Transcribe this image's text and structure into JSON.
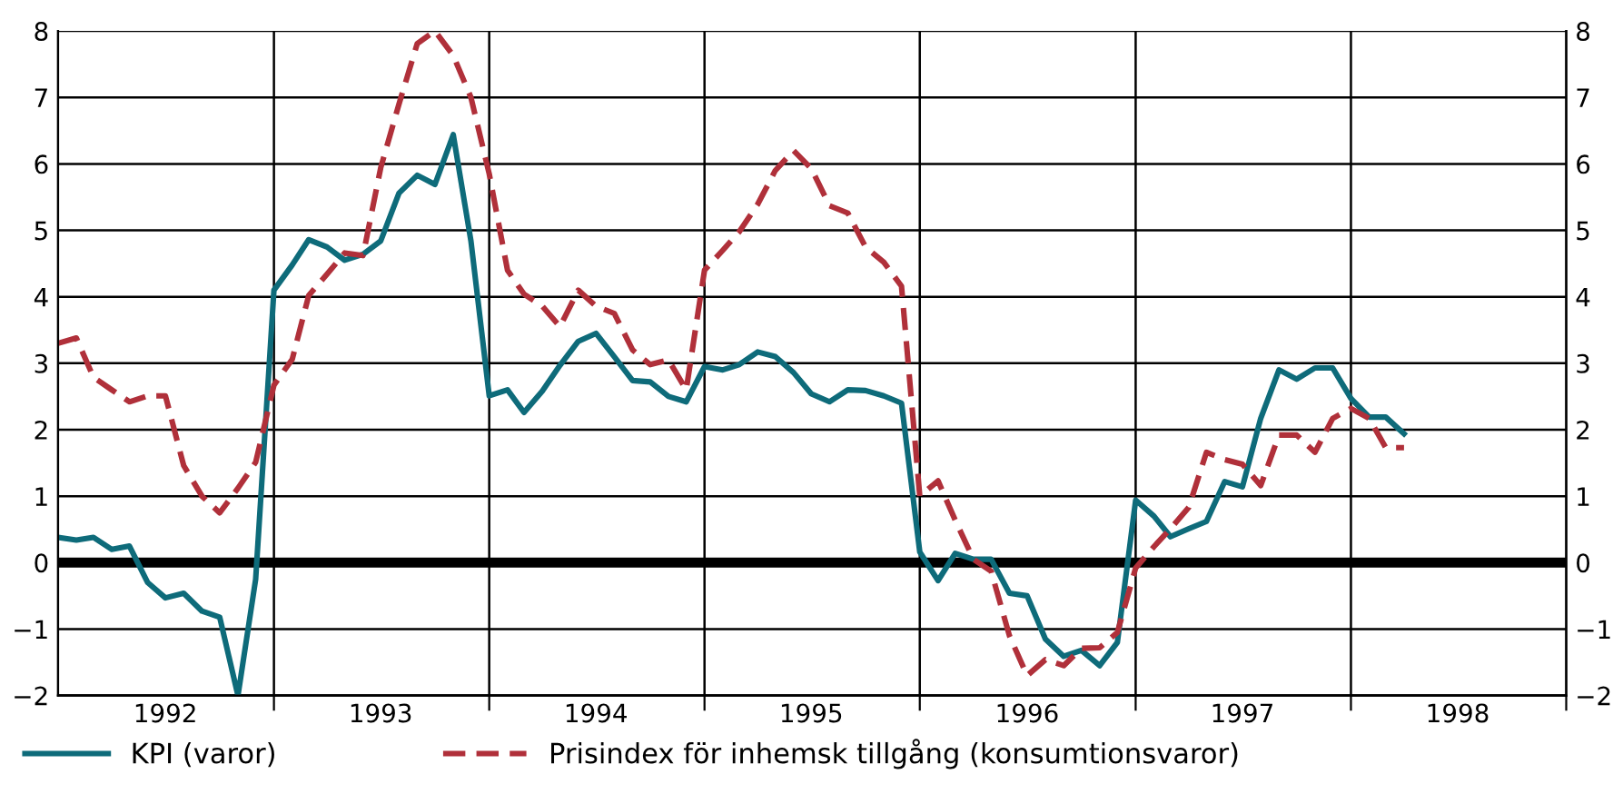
{
  "chart_data": {
    "type": "line",
    "x": [
      "1992-01",
      "1992-02",
      "1992-03",
      "1992-04",
      "1992-05",
      "1992-06",
      "1992-07",
      "1992-08",
      "1992-09",
      "1992-10",
      "1992-11",
      "1992-12",
      "1993-01",
      "1993-02",
      "1993-03",
      "1993-04",
      "1993-05",
      "1993-06",
      "1993-07",
      "1993-08",
      "1993-09",
      "1993-10",
      "1993-11",
      "1993-12",
      "1994-01",
      "1994-02",
      "1994-03",
      "1994-04",
      "1994-05",
      "1994-06",
      "1994-07",
      "1994-08",
      "1994-09",
      "1994-10",
      "1994-11",
      "1994-12",
      "1995-01",
      "1995-02",
      "1995-03",
      "1995-04",
      "1995-05",
      "1995-06",
      "1995-07",
      "1995-08",
      "1995-09",
      "1995-10",
      "1995-11",
      "1995-12",
      "1996-01",
      "1996-02",
      "1996-03",
      "1996-04",
      "1996-05",
      "1996-06",
      "1996-07",
      "1996-08",
      "1996-09",
      "1996-10",
      "1996-11",
      "1996-12",
      "1997-01",
      "1997-02",
      "1997-03",
      "1997-04",
      "1997-05",
      "1997-06",
      "1997-07",
      "1997-08",
      "1997-09",
      "1997-10",
      "1997-11",
      "1997-12",
      "1998-01",
      "1998-02",
      "1998-03",
      "1998-04"
    ],
    "series": [
      {
        "name": "KPI (varor)",
        "color": "#0e6b7a",
        "line_style": "solid",
        "values": [
          0.38,
          0.34,
          0.38,
          0.2,
          0.25,
          -0.3,
          -0.53,
          -0.46,
          -0.73,
          -0.82,
          -2.0,
          -0.25,
          4.1,
          4.48,
          4.86,
          4.75,
          4.55,
          4.64,
          4.84,
          5.56,
          5.83,
          5.69,
          6.44,
          4.84,
          2.51,
          2.6,
          2.26,
          2.58,
          2.97,
          3.33,
          3.45,
          3.1,
          2.74,
          2.72,
          2.5,
          2.42,
          2.95,
          2.9,
          2.98,
          3.17,
          3.1,
          2.86,
          2.54,
          2.42,
          2.6,
          2.59,
          2.51,
          2.4,
          0.16,
          -0.27,
          0.14,
          0.05,
          0.05,
          -0.46,
          -0.5,
          -1.15,
          -1.41,
          -1.32,
          -1.55,
          -1.2,
          0.94,
          0.7,
          0.39,
          0.51,
          0.62,
          1.22,
          1.14,
          2.17,
          2.9,
          2.76,
          2.93,
          2.93,
          2.47,
          2.19,
          2.19,
          1.94
        ]
      },
      {
        "name": "Prisindex för inhemsk tillgång (konsumtionsvaror)",
        "color": "#b0303a",
        "line_style": "dashed",
        "values": [
          3.3,
          3.38,
          2.79,
          2.6,
          2.42,
          2.51,
          2.51,
          1.46,
          1.0,
          0.75,
          1.12,
          1.51,
          2.67,
          3.06,
          4.02,
          4.34,
          4.66,
          4.62,
          5.94,
          6.9,
          7.81,
          8.0,
          7.63,
          7.0,
          5.85,
          4.4,
          4.04,
          3.86,
          3.55,
          4.1,
          3.86,
          3.75,
          3.2,
          2.98,
          3.05,
          2.6,
          4.4,
          4.7,
          4.98,
          5.39,
          5.9,
          6.2,
          5.93,
          5.37,
          5.26,
          4.75,
          4.52,
          4.16,
          1.0,
          1.23,
          0.64,
          0.05,
          -0.13,
          -1.1,
          -1.7,
          -1.46,
          -1.55,
          -1.29,
          -1.28,
          -1.05,
          -0.08,
          0.24,
          0.51,
          0.83,
          1.66,
          1.55,
          1.48,
          1.16,
          1.92,
          1.92,
          1.66,
          2.17,
          2.32,
          2.17,
          1.73,
          1.73
        ]
      }
    ],
    "xlim": [
      "1992-01-01",
      "1999-01-01"
    ],
    "xticks": [
      {
        "value": "1992-07-01",
        "label": "1992"
      },
      {
        "value": "1993-07-01",
        "label": "1993"
      },
      {
        "value": "1994-07-01",
        "label": "1994"
      },
      {
        "value": "1995-07-01",
        "label": "1995"
      },
      {
        "value": "1996-07-01",
        "label": "1996"
      },
      {
        "value": "1997-07-01",
        "label": "1997"
      },
      {
        "value": "1998-07-01",
        "label": "1998"
      },
      {
        "value": "1993-01-01",
        "label": null
      },
      {
        "value": "1994-01-01",
        "label": null
      },
      {
        "value": "1995-01-01",
        "label": null
      },
      {
        "value": "1996-01-01",
        "label": null
      },
      {
        "value": "1997-01-01",
        "label": null
      },
      {
        "value": "1998-01-01",
        "label": null
      },
      {
        "value": "1999-01-01",
        "label": null
      }
    ],
    "ylim": [
      -2,
      8
    ],
    "yticks": [
      {
        "value": -2,
        "label": "−2"
      },
      {
        "value": -1,
        "label": "−1"
      },
      {
        "value": 0,
        "label": "0"
      },
      {
        "value": 1,
        "label": "1"
      },
      {
        "value": 2,
        "label": "2"
      },
      {
        "value": 3,
        "label": "3"
      },
      {
        "value": 4,
        "label": "4"
      },
      {
        "value": 5,
        "label": "5"
      },
      {
        "value": 6,
        "label": "6"
      },
      {
        "value": 7,
        "label": "7"
      },
      {
        "value": 8,
        "label": "8"
      }
    ],
    "y2lim": [
      -2,
      8
    ],
    "y2ticks": [
      {
        "value": -2,
        "label": "−2"
      },
      {
        "value": -1,
        "label": "−1"
      },
      {
        "value": 0,
        "label": "0"
      },
      {
        "value": 1,
        "label": "1"
      },
      {
        "value": 2,
        "label": "2"
      },
      {
        "value": 3,
        "label": "3"
      },
      {
        "value": 4,
        "label": "4"
      },
      {
        "value": 5,
        "label": "5"
      },
      {
        "value": 6,
        "label": "6"
      },
      {
        "value": 7,
        "label": "7"
      },
      {
        "value": 8,
        "label": "8"
      }
    ],
    "grid": "y",
    "ref_lines": [
      {
        "axis": "y",
        "value": 0,
        "color": "#000000"
      },
      {
        "axis": "x",
        "value": "1993-01-01",
        "color": "#000000"
      },
      {
        "axis": "x",
        "value": "1994-01-01",
        "color": "#000000"
      },
      {
        "axis": "x",
        "value": "1995-01-01",
        "color": "#000000"
      },
      {
        "axis": "x",
        "value": "1996-01-01",
        "color": "#000000"
      },
      {
        "axis": "x",
        "value": "1997-01-01",
        "color": "#000000"
      },
      {
        "axis": "x",
        "value": "1998-01-01",
        "color": "#000000"
      }
    ],
    "legend": "bottom",
    "marker": "none"
  }
}
